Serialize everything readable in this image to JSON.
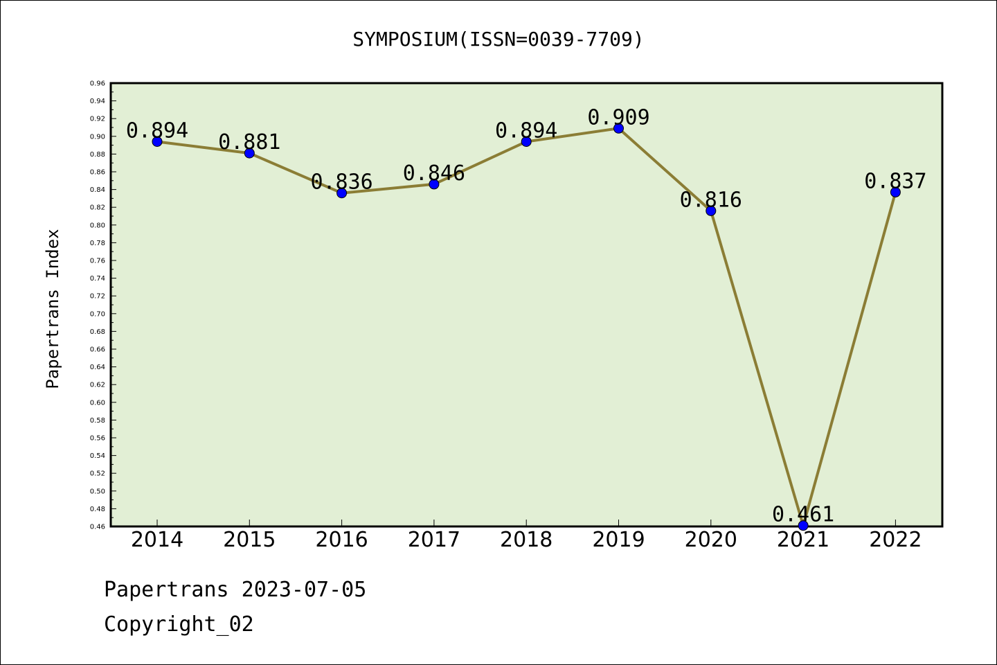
{
  "chart_data": {
    "type": "line",
    "title": "SYMPOSIUM(ISSN=0039-7709)",
    "xlabel": "",
    "ylabel": "Papertrans Index",
    "categories": [
      "2014",
      "2015",
      "2016",
      "2017",
      "2018",
      "2019",
      "2020",
      "2021",
      "2022"
    ],
    "series": [
      {
        "values": [
          0.894,
          0.881,
          0.836,
          0.846,
          0.894,
          0.909,
          0.816,
          0.461,
          0.837
        ]
      }
    ],
    "data_labels": [
      "0.894",
      "0.881",
      "0.836",
      "0.846",
      "0.894",
      "0.909",
      "0.816",
      "0.461",
      "0.837"
    ],
    "ylim": [
      0.46,
      0.96
    ],
    "yticks": [
      "0.46",
      "0.48",
      "0.50",
      "0.52",
      "0.54",
      "0.56",
      "0.58",
      "0.60",
      "0.62",
      "0.64",
      "0.66",
      "0.68",
      "0.70",
      "0.72",
      "0.74",
      "0.76",
      "0.78",
      "0.80",
      "0.82",
      "0.84",
      "0.86",
      "0.88",
      "0.90",
      "0.92",
      "0.94",
      "0.96"
    ],
    "grid": false,
    "colors": {
      "plot_background": "#e2efd5",
      "line": "#8b7d35",
      "marker": "#0000ff"
    }
  },
  "footer": {
    "line1": "Papertrans 2023-07-05",
    "line2": "Copyright_02"
  }
}
